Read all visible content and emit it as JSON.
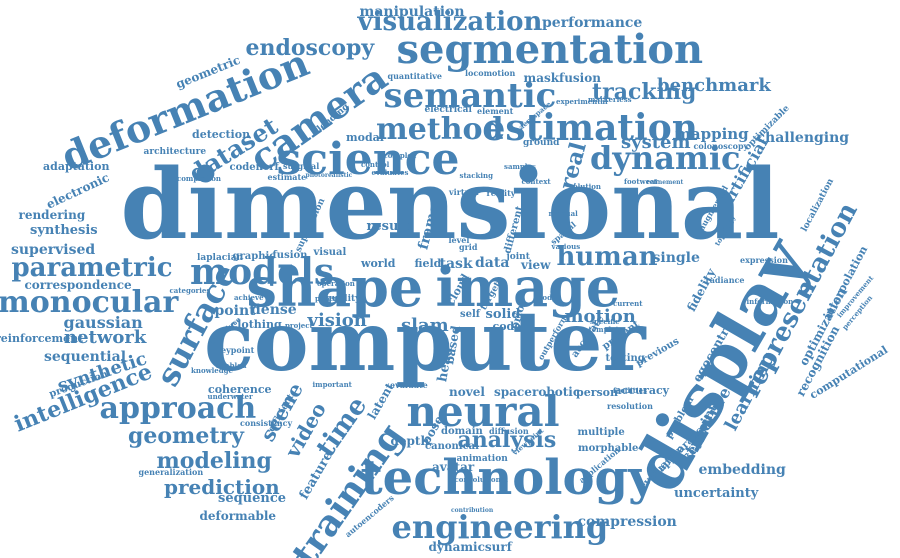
{
  "word_color": "#4682b4",
  "background_color": "#ffffff",
  "words": [
    {
      "key": "dimensional",
      "text": "dimensional"
    },
    {
      "key": "computer",
      "text": "computer"
    },
    {
      "key": "technology",
      "text": "technology"
    },
    {
      "key": "display",
      "text": "display"
    },
    {
      "key": "shape",
      "text": "shape"
    },
    {
      "key": "image",
      "text": "image"
    },
    {
      "key": "science",
      "text": "science"
    },
    {
      "key": "segmentation",
      "text": "segmentation"
    },
    {
      "key": "deformation",
      "text": "deformation"
    },
    {
      "key": "camera",
      "text": "camera"
    },
    {
      "key": "method",
      "text": "method"
    },
    {
      "key": "estimation",
      "text": "estimation"
    },
    {
      "key": "semantic",
      "text": "semantic"
    },
    {
      "key": "dynamic",
      "text": "dynamic"
    },
    {
      "key": "visualization",
      "text": "visualization"
    },
    {
      "key": "models",
      "text": "models"
    },
    {
      "key": "neural",
      "text": "neural"
    },
    {
      "key": "training",
      "text": "training"
    },
    {
      "key": "engineering",
      "text": "engineering"
    },
    {
      "key": "representation",
      "text": "representation"
    },
    {
      "key": "surface",
      "text": "surface"
    },
    {
      "key": "monocular",
      "text": "monocular"
    },
    {
      "key": "parametric",
      "text": "parametric"
    },
    {
      "key": "approach",
      "text": "approach"
    },
    {
      "key": "human",
      "text": "human"
    },
    {
      "key": "analysis",
      "text": "analysis"
    },
    {
      "key": "modeling",
      "text": "modeling"
    },
    {
      "key": "geometry",
      "text": "geometry"
    },
    {
      "key": "dataset",
      "text": "dataset"
    },
    {
      "key": "tracking",
      "text": "tracking"
    },
    {
      "key": "endoscopy",
      "text": "endoscopy"
    },
    {
      "key": "prediction",
      "text": "prediction"
    },
    {
      "key": "intelligence",
      "text": "intelligence"
    },
    {
      "key": "benchmark",
      "text": "benchmark"
    },
    {
      "key": "real",
      "text": "real"
    },
    {
      "key": "system",
      "text": "system"
    },
    {
      "key": "mapping",
      "text": "mapping"
    },
    {
      "key": "challenging",
      "text": "challenging"
    },
    {
      "key": "artificial",
      "text": "artificial"
    },
    {
      "key": "learning",
      "text": "learning"
    },
    {
      "key": "structure",
      "text": "structure"
    },
    {
      "key": "time",
      "text": "time"
    },
    {
      "key": "video",
      "text": "video"
    },
    {
      "key": "scene",
      "text": "scene"
    },
    {
      "key": "vision",
      "text": "vision"
    },
    {
      "key": "slam",
      "text": "slam"
    },
    {
      "key": "motion",
      "text": "motion"
    },
    {
      "key": "network",
      "text": "network"
    },
    {
      "key": "synthetic",
      "text": "synthetic"
    },
    {
      "key": "gaussian",
      "text": "gaussian"
    },
    {
      "key": "supervised",
      "text": "supervised"
    },
    {
      "key": "sequential",
      "text": "sequential"
    },
    {
      "key": "rendering",
      "text": "rendering"
    },
    {
      "key": "synthesis",
      "text": "synthesis"
    },
    {
      "key": "correspondence",
      "text": "correspondence"
    },
    {
      "key": "reinforcement",
      "text": "reinforcement"
    },
    {
      "key": "electronic",
      "text": "electronic"
    },
    {
      "key": "adaptation",
      "text": "adaptation"
    },
    {
      "key": "architecture",
      "text": "architecture"
    },
    {
      "key": "detection",
      "text": "detection"
    },
    {
      "key": "geometric",
      "text": "geometric"
    },
    {
      "key": "manipulation",
      "text": "manipulation"
    },
    {
      "key": "performance",
      "text": "performance"
    },
    {
      "key": "maskfusion",
      "text": "maskfusion"
    },
    {
      "key": "embedding",
      "text": "embedding"
    },
    {
      "key": "uncertainty",
      "text": "uncertainty"
    },
    {
      "key": "compression",
      "text": "compression"
    },
    {
      "key": "sequence",
      "text": "sequence"
    },
    {
      "key": "deformable",
      "text": "deformable"
    },
    {
      "key": "dynamicsurf",
      "text": "dynamicsurf"
    },
    {
      "key": "avatar",
      "text": "avatar"
    },
    {
      "key": "canonical",
      "text": "canonical"
    },
    {
      "key": "novel",
      "text": "novel"
    },
    {
      "key": "space",
      "text": "space"
    },
    {
      "key": "robotic",
      "text": "robotic"
    },
    {
      "key": "person",
      "text": "person"
    },
    {
      "key": "accuracy",
      "text": "accuracy"
    },
    {
      "key": "depth",
      "text": "depth"
    },
    {
      "key": "pose",
      "text": "pose"
    },
    {
      "key": "latent",
      "text": "latent"
    },
    {
      "key": "multiple",
      "text": "multiple"
    },
    {
      "key": "morphable",
      "text": "morphable"
    },
    {
      "key": "testing",
      "text": "testing"
    },
    {
      "key": "previous",
      "text": "previous"
    },
    {
      "key": "egocentric",
      "text": "egocentric"
    },
    {
      "key": "recognition",
      "text": "recognition"
    },
    {
      "key": "computational",
      "text": "computational"
    },
    {
      "key": "optimization",
      "text": "optimization"
    },
    {
      "key": "interpolation",
      "text": "interpolation"
    },
    {
      "key": "single",
      "text": "single"
    },
    {
      "key": "fidelity",
      "text": "fidelity"
    },
    {
      "key": "present",
      "text": "present"
    },
    {
      "key": "point",
      "text": "point"
    },
    {
      "key": "dense",
      "text": "dense"
    },
    {
      "key": "clothing",
      "text": "clothing"
    },
    {
      "key": "result",
      "text": "result"
    },
    {
      "key": "frame",
      "text": "frame"
    },
    {
      "key": "field",
      "text": "field"
    },
    {
      "key": "task",
      "text": "task"
    },
    {
      "key": "data",
      "text": "data"
    },
    {
      "key": "world",
      "text": "world"
    },
    {
      "key": "view",
      "text": "view"
    },
    {
      "key": "visual",
      "text": "visual"
    },
    {
      "key": "graphic",
      "text": "graphic"
    },
    {
      "key": "fusion",
      "text": "fusion"
    },
    {
      "key": "blending",
      "text": "blending"
    },
    {
      "key": "modal",
      "text": "modal"
    },
    {
      "key": "ground",
      "text": "ground"
    },
    {
      "key": "electrical",
      "text": "electrical"
    },
    {
      "key": "element",
      "text": "element"
    },
    {
      "key": "aerospace",
      "text": "aerospace"
    },
    {
      "key": "quantitative",
      "text": "quantitative"
    },
    {
      "key": "locomotion",
      "text": "locomotion"
    },
    {
      "key": "supervision",
      "text": "supervision"
    },
    {
      "key": "coherence",
      "text": "coherence"
    },
    {
      "key": "efficient",
      "text": "efficient"
    },
    {
      "key": "feature",
      "text": "feature"
    },
    {
      "key": "production",
      "text": "production"
    },
    {
      "key": "keypoint",
      "text": "keypoint"
    },
    {
      "key": "keypoints",
      "text": "keypoints"
    },
    {
      "key": "problem",
      "text": "problem"
    },
    {
      "key": "appearance",
      "text": "appearance"
    },
    {
      "key": "evaluation",
      "text": "evaluation"
    },
    {
      "key": "solid",
      "text": "solid"
    },
    {
      "key": "code",
      "text": "code"
    },
    {
      "key": "self",
      "text": "self"
    },
    {
      "key": "animation",
      "text": "animation"
    },
    {
      "key": "domain",
      "text": "domain"
    },
    {
      "key": "diffusion",
      "text": "diffusion"
    },
    {
      "key": "generalization",
      "text": "generalization"
    },
    {
      "key": "consistency",
      "text": "consistency"
    },
    {
      "key": "convolutional",
      "text": "convolutional"
    },
    {
      "key": "cloud",
      "text": "cloud"
    },
    {
      "key": "head",
      "text": "head"
    },
    {
      "key": "based",
      "text": "based"
    },
    {
      "key": "prior",
      "text": "prior"
    },
    {
      "key": "different",
      "text": "different"
    },
    {
      "key": "joint",
      "text": "joint"
    },
    {
      "key": "codenerf",
      "text": "codenerf"
    },
    {
      "key": "estimate",
      "text": "estimate"
    },
    {
      "key": "surgical",
      "text": "surgical"
    },
    {
      "key": "colonoscopy",
      "text": "colonoscopy"
    },
    {
      "key": "optimizable",
      "text": "optimizable"
    },
    {
      "key": "localization",
      "text": "localization"
    },
    {
      "key": "radiance",
      "text": "radiance"
    },
    {
      "key": "expression",
      "text": "expression"
    },
    {
      "key": "resolution",
      "text": "resolution"
    },
    {
      "key": "facilities",
      "text": "facilities"
    },
    {
      "key": "specific",
      "text": "specific"
    },
    {
      "key": "template",
      "text": "template"
    },
    {
      "key": "current",
      "text": "current"
    },
    {
      "key": "laplacian",
      "text": "laplacian"
    },
    {
      "key": "achieve",
      "text": "achieve"
    },
    {
      "key": "quality",
      "text": "quality"
    },
    {
      "key": "level",
      "text": "level"
    },
    {
      "key": "grid",
      "text": "grid"
    },
    {
      "key": "evaluate",
      "text": "evaluate"
    },
    {
      "key": "contribution",
      "text": "contribution"
    },
    {
      "key": "viewpoint",
      "text": "viewpoint"
    },
    {
      "key": "application",
      "text": "application"
    },
    {
      "key": "footwear",
      "text": "footwear"
    },
    {
      "key": "information",
      "text": "information"
    },
    {
      "key": "complex",
      "text": "complex"
    },
    {
      "key": "virtual",
      "text": "virtual"
    },
    {
      "key": "control",
      "text": "control"
    },
    {
      "key": "introduce",
      "text": "introduce"
    },
    {
      "key": "categories",
      "text": "categories"
    },
    {
      "key": "experimental",
      "text": "experimental"
    },
    {
      "key": "markerless",
      "text": "markerless"
    },
    {
      "key": "completion",
      "text": "completion"
    },
    {
      "key": "underwater",
      "text": "underwater"
    },
    {
      "key": "knowledge",
      "text": "knowledge"
    },
    {
      "key": "important",
      "text": "important"
    },
    {
      "key": "manual",
      "text": "manual"
    },
    {
      "key": "augmented",
      "text": "augmented"
    },
    {
      "key": "spatial",
      "text": "spatial"
    },
    {
      "key": "context",
      "text": "context"
    },
    {
      "key": "reality",
      "text": "reality"
    },
    {
      "key": "body",
      "text": "body"
    },
    {
      "key": "enabled",
      "text": "enabled"
    },
    {
      "key": "paper",
      "text": "paper"
    },
    {
      "key": "project",
      "text": "project"
    },
    {
      "key": "solution",
      "text": "solution"
    },
    {
      "key": "various",
      "text": "various"
    },
    {
      "key": "target",
      "text": "target"
    },
    {
      "key": "refinement",
      "text": "refinement"
    },
    {
      "key": "topology",
      "text": "topology"
    },
    {
      "key": "accurate",
      "text": "accurate"
    },
    {
      "key": "outperform",
      "text": "outperform"
    },
    {
      "key": "stacking",
      "text": "stacking"
    },
    {
      "key": "samples",
      "text": "samples"
    },
    {
      "key": "perception",
      "text": "perception"
    },
    {
      "key": "improvement",
      "text": "improvement"
    },
    {
      "key": "photorealistic",
      "text": "photorealistic"
    },
    {
      "key": "evaluates",
      "text": "evaluates"
    },
    {
      "key": "operation",
      "text": "operation"
    },
    {
      "key": "autoencoders",
      "text": "autoencoders"
    }
  ]
}
